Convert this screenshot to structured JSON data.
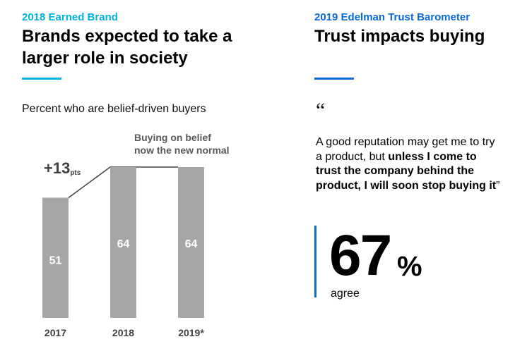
{
  "colors": {
    "left_accent": "#00b2e3",
    "right_accent": "#0b6ad6",
    "bar": "#a6a6a6"
  },
  "left": {
    "eyebrow": "2018 Earned Brand",
    "headline": "Brands expected to take a larger role in society",
    "subtitle": "Percent who are belief-driven buyers"
  },
  "right": {
    "eyebrow": "2019 Edelman Trust Barometer",
    "headline": "Trust impacts buying",
    "quote_mark": "“",
    "quote": {
      "part1": "A good reputation may get me to try a product, but ",
      "bold": "unless I come to trust the company behind the product, I will soon stop buying it",
      "close": "”"
    },
    "stat": {
      "value": "67",
      "unit": "%",
      "caption": "agree"
    }
  },
  "chart_data": {
    "type": "bar",
    "categories": [
      "2017",
      "2018",
      "2019*"
    ],
    "values": [
      51,
      64,
      64
    ],
    "ylim": [
      0,
      64
    ],
    "title": "Percent who are belief-driven buyers",
    "annotations": {
      "increase_value": "+13",
      "increase_unit": "pts",
      "note_line1": "Buying on belief",
      "note_line2": "now the new normal"
    }
  }
}
